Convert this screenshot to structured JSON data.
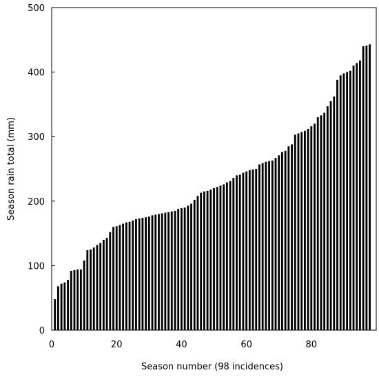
{
  "chart_data": {
    "type": "bar",
    "x_label": "Season number (98 incidences)",
    "y_label": "Season rain total (mm)",
    "x": [
      1,
      2,
      3,
      4,
      5,
      6,
      7,
      8,
      9,
      10,
      11,
      12,
      13,
      14,
      15,
      16,
      17,
      18,
      19,
      20,
      21,
      22,
      23,
      24,
      25,
      26,
      27,
      28,
      29,
      30,
      31,
      32,
      33,
      34,
      35,
      36,
      37,
      38,
      39,
      40,
      41,
      42,
      43,
      44,
      45,
      46,
      47,
      48,
      49,
      50,
      51,
      52,
      53,
      54,
      55,
      56,
      57,
      58,
      59,
      60,
      61,
      62,
      63,
      64,
      65,
      66,
      67,
      68,
      69,
      70,
      71,
      72,
      73,
      74,
      75,
      76,
      77,
      78,
      79,
      80,
      81,
      82,
      83,
      84,
      85,
      86,
      87,
      88,
      89,
      90,
      91,
      92,
      93,
      94,
      95,
      96,
      97,
      98
    ],
    "values": [
      48,
      68,
      72,
      74,
      78,
      92,
      93,
      94,
      94,
      108,
      124,
      125,
      128,
      132,
      135,
      140,
      143,
      152,
      160,
      161,
      163,
      165,
      167,
      168,
      170,
      172,
      173,
      174,
      175,
      176,
      178,
      179,
      180,
      181,
      182,
      183,
      184,
      185,
      188,
      189,
      190,
      193,
      196,
      202,
      208,
      213,
      215,
      216,
      218,
      220,
      222,
      224,
      226,
      229,
      231,
      236,
      240,
      241,
      244,
      246,
      248,
      249,
      250,
      257,
      259,
      261,
      262,
      263,
      267,
      271,
      276,
      278,
      285,
      288,
      303,
      305,
      307,
      309,
      312,
      316,
      320,
      330,
      333,
      337,
      347,
      355,
      362,
      388,
      395,
      398,
      400,
      402,
      410,
      414,
      418,
      440,
      441,
      443
    ],
    "color": "#000000",
    "xlim": [
      0,
      100
    ],
    "xticks": [
      0,
      20,
      40,
      60,
      80
    ],
    "ylim": [
      0,
      500
    ],
    "yticks": [
      0,
      100,
      200,
      300,
      400,
      500
    ]
  }
}
